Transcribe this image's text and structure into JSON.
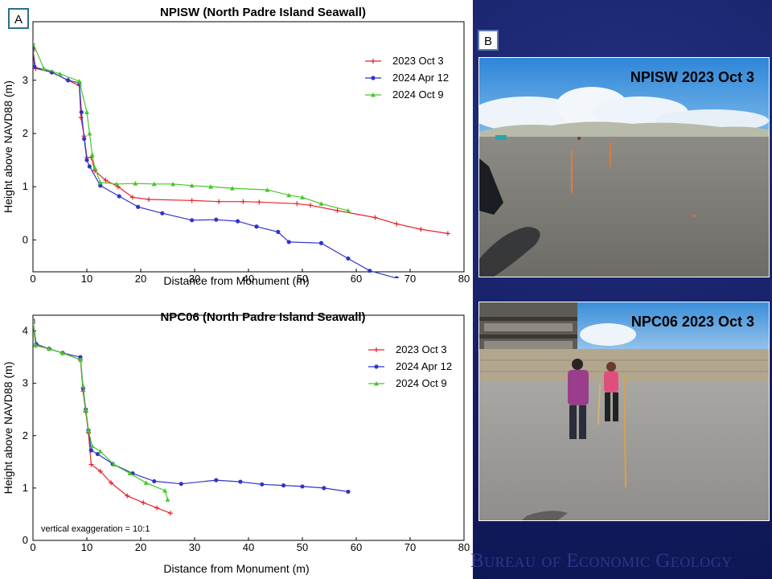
{
  "panel_labels": {
    "a": "A",
    "b": "B"
  },
  "chart_data": [
    {
      "type": "line",
      "title": "NPISW (North Padre Island Seawall)",
      "xlabel": "Distance from Monument (m)",
      "ylabel": "Height above NAVD88 (m)",
      "xlim": [
        0,
        80
      ],
      "ylim": [
        -0.6,
        4.1
      ],
      "xticks": [
        "0",
        "10",
        "20",
        "30",
        "40",
        "50",
        "60",
        "70",
        "80"
      ],
      "yticks": [
        "0",
        "1",
        "2",
        "3"
      ],
      "legend_position": "top-right",
      "grid": false,
      "annotation": "",
      "series": [
        {
          "name": "2023 Oct 3",
          "color": "#e8242a",
          "marker": "plus",
          "x": [
            0.0,
            0.5,
            3.5,
            6.5,
            8.6,
            8.9,
            9.5,
            10.0,
            10.8,
            11.5,
            13.5,
            15.8,
            18.5,
            21.5,
            29.5,
            34.5,
            39.0,
            42.0,
            49.0,
            51.5,
            56.5,
            63.5,
            67.5,
            72.0,
            77.0
          ],
          "y": [
            3.55,
            3.22,
            3.15,
            3.0,
            2.9,
            2.3,
            1.95,
            1.55,
            1.55,
            1.3,
            1.12,
            1.0,
            0.8,
            0.76,
            0.74,
            0.72,
            0.72,
            0.71,
            0.68,
            0.65,
            0.55,
            0.42,
            0.3,
            0.2,
            0.12
          ]
        },
        {
          "name": "2024 Apr 12",
          "color": "#2f34c8",
          "marker": "dot",
          "x": [
            0.0,
            0.3,
            3.5,
            6.5,
            8.6,
            9.0,
            9.5,
            10.0,
            10.5,
            12.5,
            16.0,
            19.5,
            24.0,
            29.5,
            34.0,
            38.0,
            41.5,
            45.5,
            47.5,
            53.5,
            58.5,
            62.5,
            67.5,
            72.0
          ],
          "y": [
            3.6,
            3.25,
            3.15,
            3.0,
            2.95,
            2.4,
            1.9,
            1.5,
            1.38,
            1.02,
            0.82,
            0.62,
            0.5,
            0.37,
            0.38,
            0.35,
            0.25,
            0.15,
            -0.04,
            -0.06,
            -0.35,
            -0.58,
            -0.72,
            -0.83
          ]
        },
        {
          "name": "2024 Oct 9",
          "color": "#44c828",
          "marker": "triangle",
          "x": [
            0.0,
            2.0,
            5.0,
            8.6,
            10.0,
            10.5,
            11.0,
            11.5,
            12.5,
            15.5,
            19.0,
            22.5,
            26.0,
            29.5,
            33.0,
            37.0,
            43.5,
            47.5,
            50.0,
            53.5,
            58.5
          ],
          "y": [
            3.7,
            3.22,
            3.12,
            2.98,
            2.4,
            2.0,
            1.6,
            1.35,
            1.08,
            1.05,
            1.06,
            1.05,
            1.05,
            1.02,
            1.0,
            0.97,
            0.94,
            0.84,
            0.8,
            0.68,
            0.55
          ]
        }
      ]
    },
    {
      "type": "line",
      "title": "NPC06 (North Padre Island Seawall)",
      "xlabel": "Distance from Monument (m)",
      "ylabel": "Height above NAVD88 (m)",
      "xlim": [
        0,
        80
      ],
      "ylim": [
        0,
        4.3
      ],
      "xticks": [
        "0",
        "10",
        "20",
        "30",
        "40",
        "50",
        "60",
        "70",
        "80"
      ],
      "yticks": [
        "0",
        "1",
        "2",
        "3",
        "4"
      ],
      "legend_position": "top-right",
      "grid": false,
      "annotation": "vertical exaggeration = 10:1",
      "series": [
        {
          "name": "2023 Oct 3",
          "color": "#e8242a",
          "marker": "plus",
          "x": [
            0.0,
            0.5,
            3.0,
            5.5,
            8.8,
            9.3,
            9.8,
            10.3,
            10.8,
            12.5,
            14.5,
            17.5,
            20.5,
            23.0,
            25.5
          ],
          "y": [
            4.15,
            3.72,
            3.66,
            3.58,
            3.45,
            2.85,
            2.45,
            2.05,
            1.45,
            1.32,
            1.1,
            0.85,
            0.72,
            0.62,
            0.52
          ]
        },
        {
          "name": "2024 Apr 12",
          "color": "#2f34c8",
          "marker": "dot",
          "x": [
            0.0,
            0.6,
            3.0,
            5.5,
            8.8,
            9.3,
            9.8,
            10.3,
            10.8,
            12.0,
            14.8,
            18.5,
            22.5,
            27.5,
            34.0,
            38.5,
            42.5,
            46.5,
            50.0,
            54.0,
            58.5
          ],
          "y": [
            4.2,
            3.75,
            3.66,
            3.58,
            3.5,
            2.9,
            2.5,
            2.1,
            1.72,
            1.65,
            1.46,
            1.28,
            1.13,
            1.08,
            1.15,
            1.12,
            1.07,
            1.05,
            1.03,
            1.0,
            0.93
          ]
        },
        {
          "name": "2024 Oct 9",
          "color": "#44c828",
          "marker": "triangle",
          "x": [
            0.0,
            0.5,
            3.0,
            5.5,
            8.8,
            9.3,
            9.8,
            10.3,
            11.0,
            12.5,
            15.0,
            18.0,
            21.0,
            24.5,
            25.0
          ],
          "y": [
            4.2,
            3.73,
            3.66,
            3.58,
            3.45,
            2.95,
            2.5,
            2.1,
            1.8,
            1.7,
            1.45,
            1.28,
            1.1,
            0.95,
            0.78
          ]
        }
      ]
    }
  ],
  "photos": [
    {
      "caption": "NPISW 2023 Oct 3"
    },
    {
      "caption": "NPC06 2023 Oct 3"
    }
  ],
  "footer": "Bureau of Economic Geology"
}
